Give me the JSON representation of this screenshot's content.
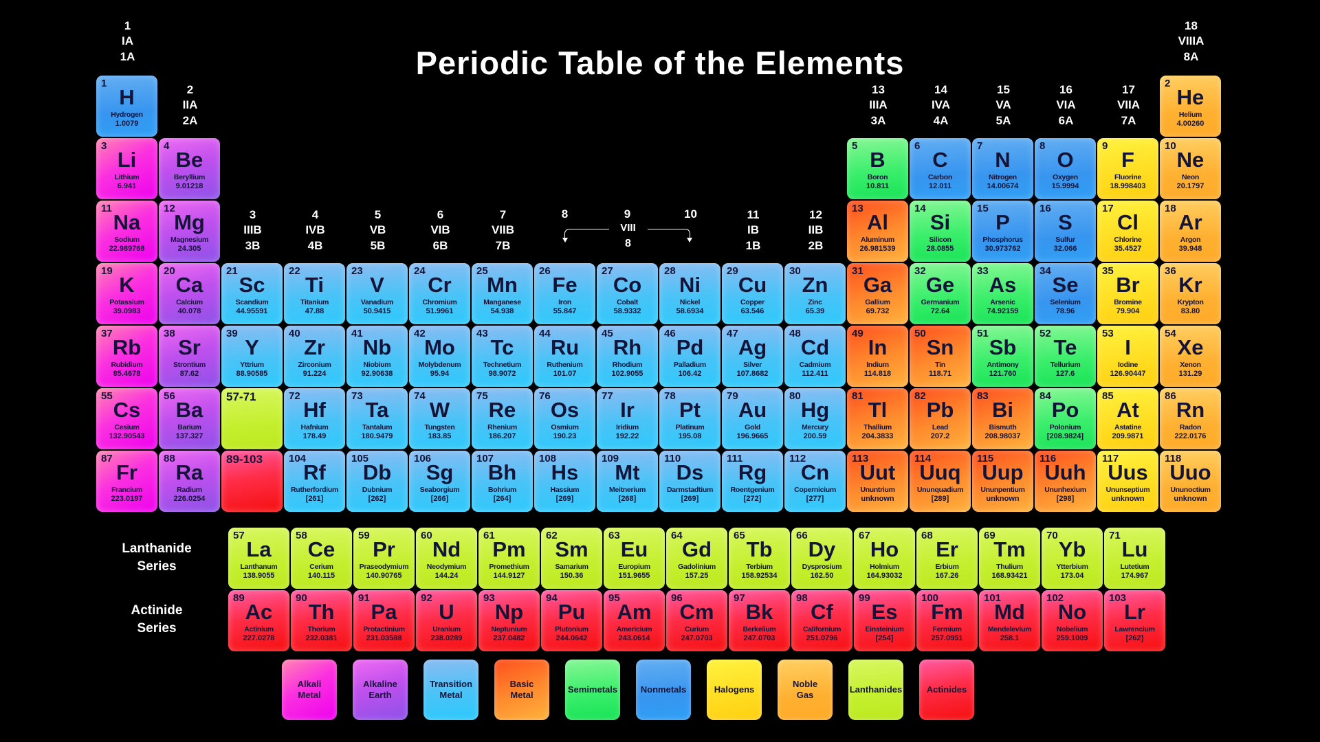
{
  "title": "Periodic Table of the Elements",
  "colors": {
    "background": "#000000",
    "text_dark": "#141438",
    "text_light": "#ffffff",
    "alkali": "#ee00ee",
    "alkaline": "#a55bee",
    "transition": "#3fc4f6",
    "basic": "#ff8c2e",
    "semimetal": "#2fe96a",
    "nonmetal": "#3b9bf2",
    "halogen": "#ffdd1c",
    "noble": "#ffb031",
    "lanthanide": "#c4ef2e",
    "actinide": "#fa1f35"
  },
  "group_headers": [
    {
      "col": 1,
      "level": "top",
      "lines": "1\nIA\n1A"
    },
    {
      "col": 2,
      "level": "row1",
      "lines": "2\nIIA\n2A"
    },
    {
      "col": 3,
      "level": "row3",
      "lines": "3\nIIIB\n3B"
    },
    {
      "col": 4,
      "level": "row3",
      "lines": "4\nIVB\n4B"
    },
    {
      "col": 5,
      "level": "row3",
      "lines": "5\nVB\n5B"
    },
    {
      "col": 6,
      "level": "row3",
      "lines": "6\nVIB\n6B"
    },
    {
      "col": 7,
      "level": "row3",
      "lines": "7\nVIIB\n7B"
    },
    {
      "col": 11,
      "level": "row3",
      "lines": "11\nIB\n1B"
    },
    {
      "col": 12,
      "level": "row3",
      "lines": "12\nIIB\n2B"
    },
    {
      "col": 13,
      "level": "row1",
      "lines": "13\nIIIA\n3A"
    },
    {
      "col": 14,
      "level": "row1",
      "lines": "14\nIVA\n4A"
    },
    {
      "col": 15,
      "level": "row1",
      "lines": "15\nVA\n5A"
    },
    {
      "col": 16,
      "level": "row1",
      "lines": "16\nVIA\n6A"
    },
    {
      "col": 17,
      "level": "row1",
      "lines": "17\nVIIA\n7A"
    },
    {
      "col": 18,
      "level": "top",
      "lines": "18\nVIIIA\n8A"
    }
  ],
  "viii_bracket": {
    "nums": [
      "8",
      "9",
      "10"
    ],
    "label": "VIII",
    "sub": "8"
  },
  "elements": [
    {
      "n": "1",
      "s": "H",
      "nm": "Hydrogen",
      "m": "1.0079",
      "cat": "nonmetal",
      "r": 1,
      "c": 1
    },
    {
      "n": "2",
      "s": "He",
      "nm": "Helium",
      "m": "4.00260",
      "cat": "noble",
      "r": 1,
      "c": 18
    },
    {
      "n": "3",
      "s": "Li",
      "nm": "Lithium",
      "m": "6.941",
      "cat": "alkali",
      "r": 2,
      "c": 1
    },
    {
      "n": "4",
      "s": "Be",
      "nm": "Beryllium",
      "m": "9.01218",
      "cat": "alkaline",
      "r": 2,
      "c": 2
    },
    {
      "n": "5",
      "s": "B",
      "nm": "Boron",
      "m": "10.811",
      "cat": "semimetal",
      "r": 2,
      "c": 13
    },
    {
      "n": "6",
      "s": "C",
      "nm": "Carbon",
      "m": "12.011",
      "cat": "nonmetal",
      "r": 2,
      "c": 14
    },
    {
      "n": "7",
      "s": "N",
      "nm": "Nitrogen",
      "m": "14.00674",
      "cat": "nonmetal",
      "r": 2,
      "c": 15
    },
    {
      "n": "8",
      "s": "O",
      "nm": "Oxygen",
      "m": "15.9994",
      "cat": "nonmetal",
      "r": 2,
      "c": 16
    },
    {
      "n": "9",
      "s": "F",
      "nm": "Fluorine",
      "m": "18.998403",
      "cat": "halogen",
      "r": 2,
      "c": 17
    },
    {
      "n": "10",
      "s": "Ne",
      "nm": "Neon",
      "m": "20.1797",
      "cat": "noble",
      "r": 2,
      "c": 18
    },
    {
      "n": "11",
      "s": "Na",
      "nm": "Sodium",
      "m": "22.989768",
      "cat": "alkali",
      "r": 3,
      "c": 1
    },
    {
      "n": "12",
      "s": "Mg",
      "nm": "Magnesium",
      "m": "24.305",
      "cat": "alkaline",
      "r": 3,
      "c": 2
    },
    {
      "n": "13",
      "s": "Al",
      "nm": "Aluminum",
      "m": "26.981539",
      "cat": "basic",
      "r": 3,
      "c": 13
    },
    {
      "n": "14",
      "s": "Si",
      "nm": "Silicon",
      "m": "28.0855",
      "cat": "semimetal",
      "r": 3,
      "c": 14
    },
    {
      "n": "15",
      "s": "P",
      "nm": "Phosphorus",
      "m": "30.973762",
      "cat": "nonmetal",
      "r": 3,
      "c": 15
    },
    {
      "n": "16",
      "s": "S",
      "nm": "Sulfur",
      "m": "32.066",
      "cat": "nonmetal",
      "r": 3,
      "c": 16
    },
    {
      "n": "17",
      "s": "Cl",
      "nm": "Chlorine",
      "m": "35.4527",
      "cat": "halogen",
      "r": 3,
      "c": 17
    },
    {
      "n": "18",
      "s": "Ar",
      "nm": "Argon",
      "m": "39.948",
      "cat": "noble",
      "r": 3,
      "c": 18
    },
    {
      "n": "19",
      "s": "K",
      "nm": "Potassium",
      "m": "39.0983",
      "cat": "alkali",
      "r": 4,
      "c": 1
    },
    {
      "n": "20",
      "s": "Ca",
      "nm": "Calcium",
      "m": "40.078",
      "cat": "alkaline",
      "r": 4,
      "c": 2
    },
    {
      "n": "21",
      "s": "Sc",
      "nm": "Scandium",
      "m": "44.95591",
      "cat": "transition",
      "r": 4,
      "c": 3
    },
    {
      "n": "22",
      "s": "Ti",
      "nm": "Titanium",
      "m": "47.88",
      "cat": "transition",
      "r": 4,
      "c": 4
    },
    {
      "n": "23",
      "s": "V",
      "nm": "Vanadium",
      "m": "50.9415",
      "cat": "transition",
      "r": 4,
      "c": 5
    },
    {
      "n": "24",
      "s": "Cr",
      "nm": "Chromium",
      "m": "51.9961",
      "cat": "transition",
      "r": 4,
      "c": 6
    },
    {
      "n": "25",
      "s": "Mn",
      "nm": "Manganese",
      "m": "54.938",
      "cat": "transition",
      "r": 4,
      "c": 7
    },
    {
      "n": "26",
      "s": "Fe",
      "nm": "Iron",
      "m": "55.847",
      "cat": "transition",
      "r": 4,
      "c": 8
    },
    {
      "n": "27",
      "s": "Co",
      "nm": "Cobalt",
      "m": "58.9332",
      "cat": "transition",
      "r": 4,
      "c": 9
    },
    {
      "n": "28",
      "s": "Ni",
      "nm": "Nickel",
      "m": "58.6934",
      "cat": "transition",
      "r": 4,
      "c": 10
    },
    {
      "n": "29",
      "s": "Cu",
      "nm": "Copper",
      "m": "63.546",
      "cat": "transition",
      "r": 4,
      "c": 11
    },
    {
      "n": "30",
      "s": "Zn",
      "nm": "Zinc",
      "m": "65.39",
      "cat": "transition",
      "r": 4,
      "c": 12
    },
    {
      "n": "31",
      "s": "Ga",
      "nm": "Gallium",
      "m": "69.732",
      "cat": "basic",
      "r": 4,
      "c": 13
    },
    {
      "n": "32",
      "s": "Ge",
      "nm": "Germanium",
      "m": "72.64",
      "cat": "semimetal",
      "r": 4,
      "c": 14
    },
    {
      "n": "33",
      "s": "As",
      "nm": "Arsenic",
      "m": "74.92159",
      "cat": "semimetal",
      "r": 4,
      "c": 15
    },
    {
      "n": "34",
      "s": "Se",
      "nm": "Selenium",
      "m": "78.96",
      "cat": "nonmetal",
      "r": 4,
      "c": 16
    },
    {
      "n": "35",
      "s": "Br",
      "nm": "Bromine",
      "m": "79.904",
      "cat": "halogen",
      "r": 4,
      "c": 17
    },
    {
      "n": "36",
      "s": "Kr",
      "nm": "Krypton",
      "m": "83.80",
      "cat": "noble",
      "r": 4,
      "c": 18
    },
    {
      "n": "37",
      "s": "Rb",
      "nm": "Rubidium",
      "m": "85.4678",
      "cat": "alkali",
      "r": 5,
      "c": 1
    },
    {
      "n": "38",
      "s": "Sr",
      "nm": "Strontium",
      "m": "87.62",
      "cat": "alkaline",
      "r": 5,
      "c": 2
    },
    {
      "n": "39",
      "s": "Y",
      "nm": "Yttrium",
      "m": "88.90585",
      "cat": "transition",
      "r": 5,
      "c": 3
    },
    {
      "n": "40",
      "s": "Zr",
      "nm": "Zirconium",
      "m": "91.224",
      "cat": "transition",
      "r": 5,
      "c": 4
    },
    {
      "n": "41",
      "s": "Nb",
      "nm": "Niobium",
      "m": "92.90638",
      "cat": "transition",
      "r": 5,
      "c": 5
    },
    {
      "n": "42",
      "s": "Mo",
      "nm": "Molybdenum",
      "m": "95.94",
      "cat": "transition",
      "r": 5,
      "c": 6
    },
    {
      "n": "43",
      "s": "Tc",
      "nm": "Technetium",
      "m": "98.9072",
      "cat": "transition",
      "r": 5,
      "c": 7
    },
    {
      "n": "44",
      "s": "Ru",
      "nm": "Ruthenium",
      "m": "101.07",
      "cat": "transition",
      "r": 5,
      "c": 8
    },
    {
      "n": "45",
      "s": "Rh",
      "nm": "Rhodium",
      "m": "102.9055",
      "cat": "transition",
      "r": 5,
      "c": 9
    },
    {
      "n": "46",
      "s": "Pd",
      "nm": "Palladium",
      "m": "106.42",
      "cat": "transition",
      "r": 5,
      "c": 10
    },
    {
      "n": "47",
      "s": "Ag",
      "nm": "Silver",
      "m": "107.8682",
      "cat": "transition",
      "r": 5,
      "c": 11
    },
    {
      "n": "48",
      "s": "Cd",
      "nm": "Cadmium",
      "m": "112.411",
      "cat": "transition",
      "r": 5,
      "c": 12
    },
    {
      "n": "49",
      "s": "In",
      "nm": "Indium",
      "m": "114.818",
      "cat": "basic",
      "r": 5,
      "c": 13
    },
    {
      "n": "50",
      "s": "Sn",
      "nm": "Tin",
      "m": "118.71",
      "cat": "basic",
      "r": 5,
      "c": 14
    },
    {
      "n": "51",
      "s": "Sb",
      "nm": "Antimony",
      "m": "121.760",
      "cat": "semimetal",
      "r": 5,
      "c": 15
    },
    {
      "n": "52",
      "s": "Te",
      "nm": "Tellurium",
      "m": "127.6",
      "cat": "semimetal",
      "r": 5,
      "c": 16
    },
    {
      "n": "53",
      "s": "I",
      "nm": "Iodine",
      "m": "126.90447",
      "cat": "halogen",
      "r": 5,
      "c": 17
    },
    {
      "n": "54",
      "s": "Xe",
      "nm": "Xenon",
      "m": "131.29",
      "cat": "noble",
      "r": 5,
      "c": 18
    },
    {
      "n": "55",
      "s": "Cs",
      "nm": "Cesium",
      "m": "132.90543",
      "cat": "alkali",
      "r": 6,
      "c": 1
    },
    {
      "n": "56",
      "s": "Ba",
      "nm": "Barium",
      "m": "137.327",
      "cat": "alkaline",
      "r": 6,
      "c": 2
    },
    {
      "n": "57-71",
      "s": "",
      "nm": "",
      "m": "",
      "cat": "lanthanide",
      "r": 6,
      "c": 3,
      "ph": true
    },
    {
      "n": "72",
      "s": "Hf",
      "nm": "Hafnium",
      "m": "178.49",
      "cat": "transition",
      "r": 6,
      "c": 4
    },
    {
      "n": "73",
      "s": "Ta",
      "nm": "Tantalum",
      "m": "180.9479",
      "cat": "transition",
      "r": 6,
      "c": 5
    },
    {
      "n": "74",
      "s": "W",
      "nm": "Tungsten",
      "m": "183.85",
      "cat": "transition",
      "r": 6,
      "c": 6
    },
    {
      "n": "75",
      "s": "Re",
      "nm": "Rhenium",
      "m": "186.207",
      "cat": "transition",
      "r": 6,
      "c": 7
    },
    {
      "n": "76",
      "s": "Os",
      "nm": "Osmium",
      "m": "190.23",
      "cat": "transition",
      "r": 6,
      "c": 8
    },
    {
      "n": "77",
      "s": "Ir",
      "nm": "Iridium",
      "m": "192.22",
      "cat": "transition",
      "r": 6,
      "c": 9
    },
    {
      "n": "78",
      "s": "Pt",
      "nm": "Platinum",
      "m": "195.08",
      "cat": "transition",
      "r": 6,
      "c": 10
    },
    {
      "n": "79",
      "s": "Au",
      "nm": "Gold",
      "m": "196.9665",
      "cat": "transition",
      "r": 6,
      "c": 11
    },
    {
      "n": "80",
      "s": "Hg",
      "nm": "Mercury",
      "m": "200.59",
      "cat": "transition",
      "r": 6,
      "c": 12
    },
    {
      "n": "81",
      "s": "Tl",
      "nm": "Thallium",
      "m": "204.3833",
      "cat": "basic",
      "r": 6,
      "c": 13
    },
    {
      "n": "82",
      "s": "Pb",
      "nm": "Lead",
      "m": "207.2",
      "cat": "basic",
      "r": 6,
      "c": 14
    },
    {
      "n": "83",
      "s": "Bi",
      "nm": "Bismuth",
      "m": "208.98037",
      "cat": "basic",
      "r": 6,
      "c": 15
    },
    {
      "n": "84",
      "s": "Po",
      "nm": "Polonium",
      "m": "[208.9824]",
      "cat": "semimetal",
      "r": 6,
      "c": 16
    },
    {
      "n": "85",
      "s": "At",
      "nm": "Astatine",
      "m": "209.9871",
      "cat": "halogen",
      "r": 6,
      "c": 17
    },
    {
      "n": "86",
      "s": "Rn",
      "nm": "Radon",
      "m": "222.0176",
      "cat": "noble",
      "r": 6,
      "c": 18
    },
    {
      "n": "87",
      "s": "Fr",
      "nm": "Francium",
      "m": "223.0197",
      "cat": "alkali",
      "r": 7,
      "c": 1
    },
    {
      "n": "88",
      "s": "Ra",
      "nm": "Radium",
      "m": "226.0254",
      "cat": "alkaline",
      "r": 7,
      "c": 2
    },
    {
      "n": "89-103",
      "s": "",
      "nm": "",
      "m": "",
      "cat": "actinide",
      "r": 7,
      "c": 3,
      "ph": true
    },
    {
      "n": "104",
      "s": "Rf",
      "nm": "Rutherfordium",
      "m": "[261]",
      "cat": "transition",
      "r": 7,
      "c": 4
    },
    {
      "n": "105",
      "s": "Db",
      "nm": "Dubnium",
      "m": "[262]",
      "cat": "transition",
      "r": 7,
      "c": 5
    },
    {
      "n": "106",
      "s": "Sg",
      "nm": "Seaborgium",
      "m": "[266]",
      "cat": "transition",
      "r": 7,
      "c": 6
    },
    {
      "n": "107",
      "s": "Bh",
      "nm": "Bohrium",
      "m": "[264]",
      "cat": "transition",
      "r": 7,
      "c": 7
    },
    {
      "n": "108",
      "s": "Hs",
      "nm": "Hassium",
      "m": "[269]",
      "cat": "transition",
      "r": 7,
      "c": 8
    },
    {
      "n": "109",
      "s": "Mt",
      "nm": "Meitnerium",
      "m": "[268]",
      "cat": "transition",
      "r": 7,
      "c": 9
    },
    {
      "n": "110",
      "s": "Ds",
      "nm": "Darmstadtium",
      "m": "[269]",
      "cat": "transition",
      "r": 7,
      "c": 10
    },
    {
      "n": "111",
      "s": "Rg",
      "nm": "Roentgenium",
      "m": "[272]",
      "cat": "transition",
      "r": 7,
      "c": 11
    },
    {
      "n": "112",
      "s": "Cn",
      "nm": "Copernicium",
      "m": "[277]",
      "cat": "transition",
      "r": 7,
      "c": 12
    },
    {
      "n": "113",
      "s": "Uut",
      "nm": "Ununtrium",
      "m": "unknown",
      "cat": "basic",
      "r": 7,
      "c": 13
    },
    {
      "n": "114",
      "s": "Uuq",
      "nm": "Ununquadium",
      "m": "[289]",
      "cat": "basic",
      "r": 7,
      "c": 14
    },
    {
      "n": "115",
      "s": "Uup",
      "nm": "Ununpentium",
      "m": "unknown",
      "cat": "basic",
      "r": 7,
      "c": 15
    },
    {
      "n": "116",
      "s": "Uuh",
      "nm": "Ununhexium",
      "m": "[298]",
      "cat": "basic",
      "r": 7,
      "c": 16
    },
    {
      "n": "117",
      "s": "Uus",
      "nm": "Ununseptium",
      "m": "unknown",
      "cat": "halogen",
      "r": 7,
      "c": 17
    },
    {
      "n": "118",
      "s": "Uuo",
      "nm": "Ununoctium",
      "m": "unknown",
      "cat": "noble",
      "r": 7,
      "c": 18
    }
  ],
  "lanthanides": [
    {
      "n": "57",
      "s": "La",
      "nm": "Lanthanum",
      "m": "138.9055"
    },
    {
      "n": "58",
      "s": "Ce",
      "nm": "Cerium",
      "m": "140.115"
    },
    {
      "n": "59",
      "s": "Pr",
      "nm": "Praseodymium",
      "m": "140.90765"
    },
    {
      "n": "60",
      "s": "Nd",
      "nm": "Neodymium",
      "m": "144.24"
    },
    {
      "n": "61",
      "s": "Pm",
      "nm": "Promethium",
      "m": "144.9127"
    },
    {
      "n": "62",
      "s": "Sm",
      "nm": "Samarium",
      "m": "150.36"
    },
    {
      "n": "63",
      "s": "Eu",
      "nm": "Europium",
      "m": "151.9655"
    },
    {
      "n": "64",
      "s": "Gd",
      "nm": "Gadolinium",
      "m": "157.25"
    },
    {
      "n": "65",
      "s": "Tb",
      "nm": "Terbium",
      "m": "158.92534"
    },
    {
      "n": "66",
      "s": "Dy",
      "nm": "Dysprosium",
      "m": "162.50"
    },
    {
      "n": "67",
      "s": "Ho",
      "nm": "Holmium",
      "m": "164.93032"
    },
    {
      "n": "68",
      "s": "Er",
      "nm": "Erbium",
      "m": "167.26"
    },
    {
      "n": "69",
      "s": "Tm",
      "nm": "Thulium",
      "m": "168.93421"
    },
    {
      "n": "70",
      "s": "Yb",
      "nm": "Ytterbium",
      "m": "173.04"
    },
    {
      "n": "71",
      "s": "Lu",
      "nm": "Lutetium",
      "m": "174.967"
    }
  ],
  "actinides": [
    {
      "n": "89",
      "s": "Ac",
      "nm": "Actinium",
      "m": "227.0278"
    },
    {
      "n": "90",
      "s": "Th",
      "nm": "Thorium",
      "m": "232.0381"
    },
    {
      "n": "91",
      "s": "Pa",
      "nm": "Protactinium",
      "m": "231.03588"
    },
    {
      "n": "92",
      "s": "U",
      "nm": "Uranium",
      "m": "238.0289"
    },
    {
      "n": "93",
      "s": "Np",
      "nm": "Neptunium",
      "m": "237.0482"
    },
    {
      "n": "94",
      "s": "Pu",
      "nm": "Plutonium",
      "m": "244.0642"
    },
    {
      "n": "95",
      "s": "Am",
      "nm": "Americium",
      "m": "243.0614"
    },
    {
      "n": "96",
      "s": "Cm",
      "nm": "Curium",
      "m": "247.0703"
    },
    {
      "n": "97",
      "s": "Bk",
      "nm": "Berkelium",
      "m": "247.0703"
    },
    {
      "n": "98",
      "s": "Cf",
      "nm": "Californium",
      "m": "251.0796"
    },
    {
      "n": "99",
      "s": "Es",
      "nm": "Einsteinium",
      "m": "[254]"
    },
    {
      "n": "100",
      "s": "Fm",
      "nm": "Fermium",
      "m": "257.0951"
    },
    {
      "n": "101",
      "s": "Md",
      "nm": "Mendelevium",
      "m": "258.1"
    },
    {
      "n": "102",
      "s": "No",
      "nm": "Nobelium",
      "m": "259.1009"
    },
    {
      "n": "103",
      "s": "Lr",
      "nm": "Lawrencium",
      "m": "[262]"
    }
  ],
  "series_labels": {
    "lanthanide": [
      "Lanthanide",
      "Series"
    ],
    "actinide": [
      "Actinide",
      "Series"
    ]
  },
  "legend": [
    {
      "label": "Alkali\nMetal",
      "cat": "alkali"
    },
    {
      "label": "Alkaline\nEarth",
      "cat": "alkaline"
    },
    {
      "label": "Transition\nMetal",
      "cat": "transition"
    },
    {
      "label": "Basic\nMetal",
      "cat": "basic"
    },
    {
      "label": "Semimetals",
      "cat": "semimetal"
    },
    {
      "label": "Nonmetals",
      "cat": "nonmetal"
    },
    {
      "label": "Halogens",
      "cat": "halogen"
    },
    {
      "label": "Noble\nGas",
      "cat": "noble"
    },
    {
      "label": "Lanthanides",
      "cat": "lanthanide"
    },
    {
      "label": "Actinides",
      "cat": "actinide"
    }
  ]
}
